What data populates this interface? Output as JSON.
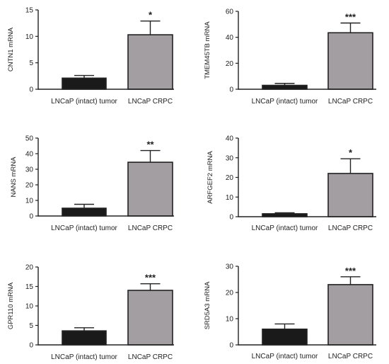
{
  "colors": {
    "tumor_bar": "#1a1a1a",
    "crpc_bar": "#a39ea2",
    "axis": "#222222"
  },
  "chart_data": [
    {
      "type": "bar",
      "ylabel": "CNTN1 mRNA",
      "categories": [
        "LNCaP (intact) tumor",
        "LNCaP CRPC"
      ],
      "values": [
        2.1,
        10.3
      ],
      "errors": [
        0.5,
        2.6
      ],
      "ylim": [
        0,
        15
      ],
      "yticks": [
        "0",
        "5",
        "10",
        "15"
      ],
      "significance": [
        "",
        "*"
      ]
    },
    {
      "type": "bar",
      "ylabel": "TMEM45TB mRNA",
      "categories": [
        "LNCaP (intact) tumor",
        "LNCaP CRPC"
      ],
      "values": [
        3,
        43.5
      ],
      "errors": [
        1.5,
        7.5
      ],
      "ylim": [
        0,
        60
      ],
      "yticks": [
        "0",
        "20",
        "40",
        "60"
      ],
      "significance": [
        "",
        "***"
      ]
    },
    {
      "type": "bar",
      "ylabel": "NANS mRNA",
      "categories": [
        "LNCaP (intact) tumor",
        "LNCaP CRPC"
      ],
      "values": [
        5,
        34.5
      ],
      "errors": [
        2.5,
        7.5
      ],
      "ylim": [
        0,
        50
      ],
      "yticks": [
        "0",
        "10",
        "20",
        "30",
        "40",
        "50"
      ],
      "significance": [
        "",
        "**"
      ]
    },
    {
      "type": "bar",
      "ylabel": "ARFGEF2 mRNA",
      "categories": [
        "LNCaP (intact) tumor",
        "LNCaP CRPC"
      ],
      "values": [
        1.5,
        22
      ],
      "errors": [
        0.5,
        7.5
      ],
      "ylim": [
        0,
        40
      ],
      "yticks": [
        "0",
        "10",
        "20",
        "30",
        "40"
      ],
      "significance": [
        "",
        "*"
      ]
    },
    {
      "type": "bar",
      "ylabel": "GPR110 mRNA",
      "categories": [
        "LNCaP (intact) tumor",
        "LNCaP CRPC"
      ],
      "values": [
        3.6,
        14
      ],
      "errors": [
        0.8,
        1.7
      ],
      "ylim": [
        0,
        20
      ],
      "yticks": [
        "0",
        "5",
        "10",
        "15",
        "20"
      ],
      "significance": [
        "",
        "***"
      ]
    },
    {
      "type": "bar",
      "ylabel": "SRD5A3 mRNA",
      "categories": [
        "LNCaP (intact) tumor",
        "LNCaP CRPC"
      ],
      "values": [
        6,
        23
      ],
      "errors": [
        2,
        3
      ],
      "ylim": [
        0,
        30
      ],
      "yticks": [
        "0",
        "10",
        "20",
        "30"
      ],
      "significance": [
        "",
        "***"
      ]
    }
  ]
}
